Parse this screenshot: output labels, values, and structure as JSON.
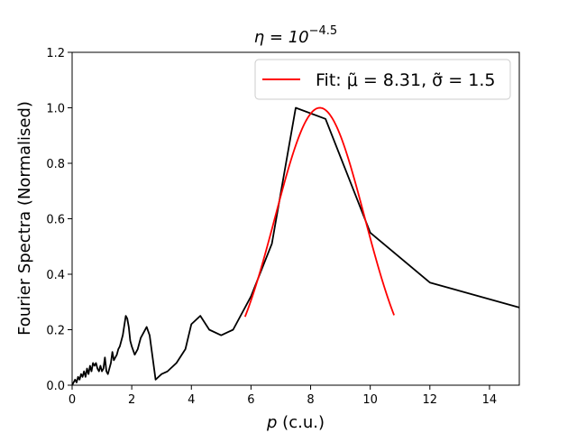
{
  "chart_data": {
    "type": "line",
    "title_base": "η = 10",
    "title_exp": "−4.5",
    "xlabel_var": "p",
    "xlabel_unit": " (c.u.)",
    "ylabel": "Fourier Spectra (Normalised)",
    "xlim": [
      0,
      15
    ],
    "ylim": [
      0,
      1.2
    ],
    "xticks": [
      0,
      2,
      4,
      6,
      8,
      10,
      12,
      14
    ],
    "xtick_labels": [
      "0",
      "2",
      "4",
      "6",
      "8",
      "10",
      "12",
      "14"
    ],
    "yticks": [
      0.0,
      0.2,
      0.4,
      0.6,
      0.8,
      1.0,
      1.2
    ],
    "ytick_labels": [
      "0.0",
      "0.2",
      "0.4",
      "0.6",
      "0.8",
      "1.0",
      "1.2"
    ],
    "grid": false,
    "legend_position": "top-right",
    "legend_text": "Fit: μ̃ = 8.31, σ̃ = 1.5",
    "series": [
      {
        "color": "#000000",
        "x": [
          0.0,
          0.1,
          0.15,
          0.2,
          0.25,
          0.3,
          0.35,
          0.4,
          0.45,
          0.5,
          0.55,
          0.6,
          0.65,
          0.7,
          0.75,
          0.8,
          0.85,
          0.9,
          0.95,
          1.0,
          1.05,
          1.1,
          1.15,
          1.2,
          1.25,
          1.3,
          1.35,
          1.4,
          1.45,
          1.5,
          1.55,
          1.6,
          1.7,
          1.8,
          1.85,
          1.9,
          1.95,
          2.0,
          2.1,
          2.2,
          2.3,
          2.4,
          2.5,
          2.6,
          2.7,
          2.8,
          2.9,
          3.0,
          3.2,
          3.5,
          3.8,
          4.0,
          4.3,
          4.6,
          5.0,
          5.4,
          6.0,
          6.7,
          7.5,
          8.5,
          10.0,
          12.0,
          15.0
        ],
        "y": [
          0.0,
          0.02,
          0.01,
          0.03,
          0.02,
          0.04,
          0.03,
          0.05,
          0.03,
          0.06,
          0.04,
          0.07,
          0.05,
          0.08,
          0.07,
          0.08,
          0.06,
          0.05,
          0.07,
          0.05,
          0.06,
          0.1,
          0.05,
          0.04,
          0.06,
          0.08,
          0.12,
          0.09,
          0.1,
          0.11,
          0.13,
          0.14,
          0.18,
          0.25,
          0.24,
          0.21,
          0.16,
          0.14,
          0.11,
          0.13,
          0.17,
          0.19,
          0.21,
          0.18,
          0.1,
          0.02,
          0.03,
          0.04,
          0.05,
          0.08,
          0.13,
          0.22,
          0.25,
          0.2,
          0.18,
          0.2,
          0.32,
          0.51,
          1.0,
          0.96,
          0.55,
          0.37,
          0.28
        ]
      },
      {
        "name": "Fit: μ̃ = 8.31, σ̃ = 1.5",
        "color": "#ff0000",
        "type": "gaussian",
        "mu": 8.31,
        "sigma": 1.5,
        "x_range": [
          5.8,
          10.8
        ]
      }
    ]
  }
}
